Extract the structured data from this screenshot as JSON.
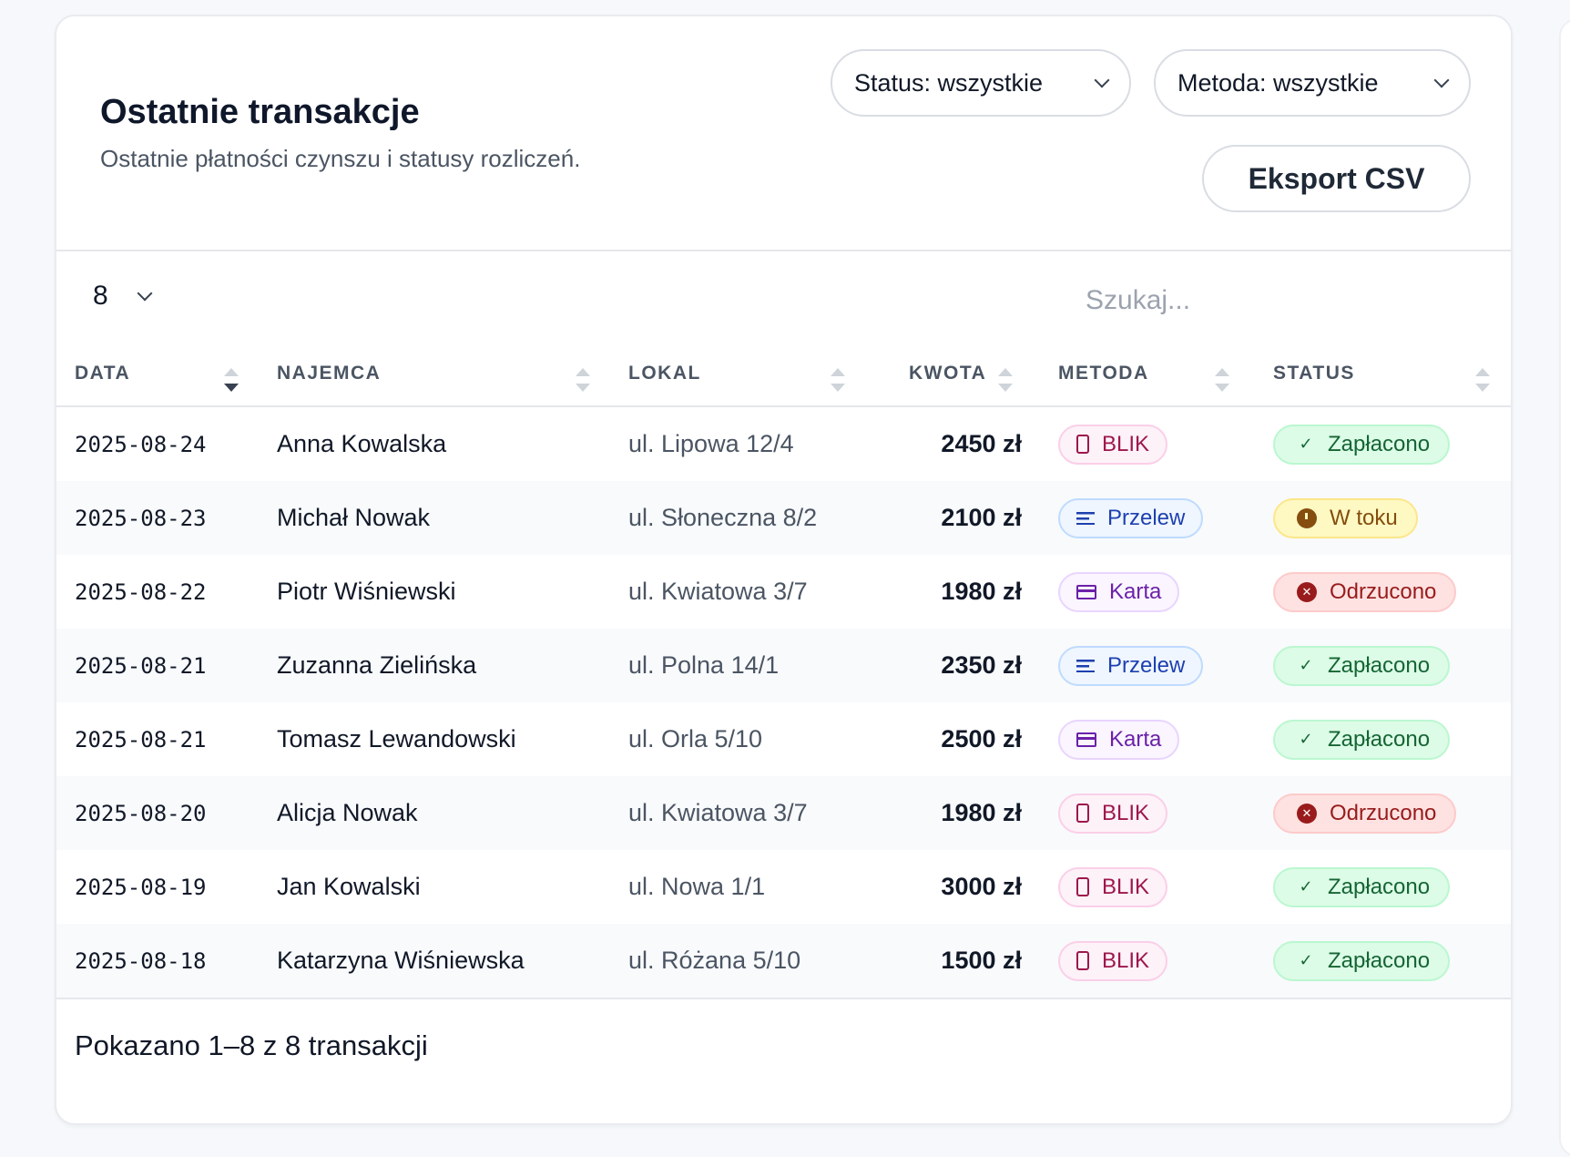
{
  "header": {
    "title": "Ostatnie transakcje",
    "subtitle": "Ostatnie płatności czynszu i statusy rozliczeń.",
    "status_filter": "Status: wszystkie",
    "method_filter": "Metoda: wszystkie",
    "export_label": "Eksport CSV"
  },
  "controls": {
    "page_size": "8",
    "search_placeholder": "Szukaj...",
    "search_value": ""
  },
  "columns": [
    {
      "label": "DATA",
      "sort": "desc"
    },
    {
      "label": "NAJEMCA",
      "sort": "none"
    },
    {
      "label": "LOKAL",
      "sort": "none"
    },
    {
      "label": "KWOTA",
      "sort": "none"
    },
    {
      "label": "METODA",
      "sort": "none"
    },
    {
      "label": "STATUS",
      "sort": "none"
    }
  ],
  "method_styles": {
    "BLIK": {
      "icon": "phone-icon",
      "bg": "#fdf2f8",
      "border": "#fbcfe8",
      "color": "#9d174d"
    },
    "Przelew": {
      "icon": "lines-icon",
      "bg": "#eff6ff",
      "border": "#bfdbfe",
      "color": "#1e40af"
    },
    "Karta": {
      "icon": "card-icon",
      "bg": "#faf5ff",
      "border": "#e9d5ff",
      "color": "#6b21a8"
    }
  },
  "status_styles": {
    "Zapłacono": {
      "icon": "check-icon",
      "bg": "#dcfce7",
      "border": "#bbf7d0",
      "color": "#166534"
    },
    "W toku": {
      "icon": "clock-icon",
      "bg": "#fef9c3",
      "border": "#fde68a",
      "color": "#854d0e"
    },
    "Odrzucono": {
      "icon": "x-circle-icon",
      "bg": "#fee2e2",
      "border": "#fecaca",
      "color": "#991b1b"
    }
  },
  "rows": [
    {
      "date": "2025-08-24",
      "tenant": "Anna Kowalska",
      "unit": "ul. Lipowa 12/4",
      "amount": "2450 zł",
      "method": "BLIK",
      "status": "Zapłacono"
    },
    {
      "date": "2025-08-23",
      "tenant": "Michał Nowak",
      "unit": "ul. Słoneczna 8/2",
      "amount": "2100 zł",
      "method": "Przelew",
      "status": "W toku"
    },
    {
      "date": "2025-08-22",
      "tenant": "Piotr Wiśniewski",
      "unit": "ul. Kwiatowa 3/7",
      "amount": "1980 zł",
      "method": "Karta",
      "status": "Odrzucono"
    },
    {
      "date": "2025-08-21",
      "tenant": "Zuzanna Zielińska",
      "unit": "ul. Polna 14/1",
      "amount": "2350 zł",
      "method": "Przelew",
      "status": "Zapłacono"
    },
    {
      "date": "2025-08-21",
      "tenant": "Tomasz Lewandowski",
      "unit": "ul. Orla 5/10",
      "amount": "2500 zł",
      "method": "Karta",
      "status": "Zapłacono"
    },
    {
      "date": "2025-08-20",
      "tenant": "Alicja Nowak",
      "unit": "ul. Kwiatowa 3/7",
      "amount": "1980 zł",
      "method": "BLIK",
      "status": "Odrzucono"
    },
    {
      "date": "2025-08-19",
      "tenant": "Jan Kowalski",
      "unit": "ul. Nowa 1/1",
      "amount": "3000 zł",
      "method": "BLIK",
      "status": "Zapłacono"
    },
    {
      "date": "2025-08-18",
      "tenant": "Katarzyna Wiśniewska",
      "unit": "ul. Różana 5/10",
      "amount": "1500 zł",
      "method": "BLIK",
      "status": "Zapłacono"
    }
  ],
  "footer": {
    "summary": "Pokazano 1–8 z 8 transakcji"
  }
}
